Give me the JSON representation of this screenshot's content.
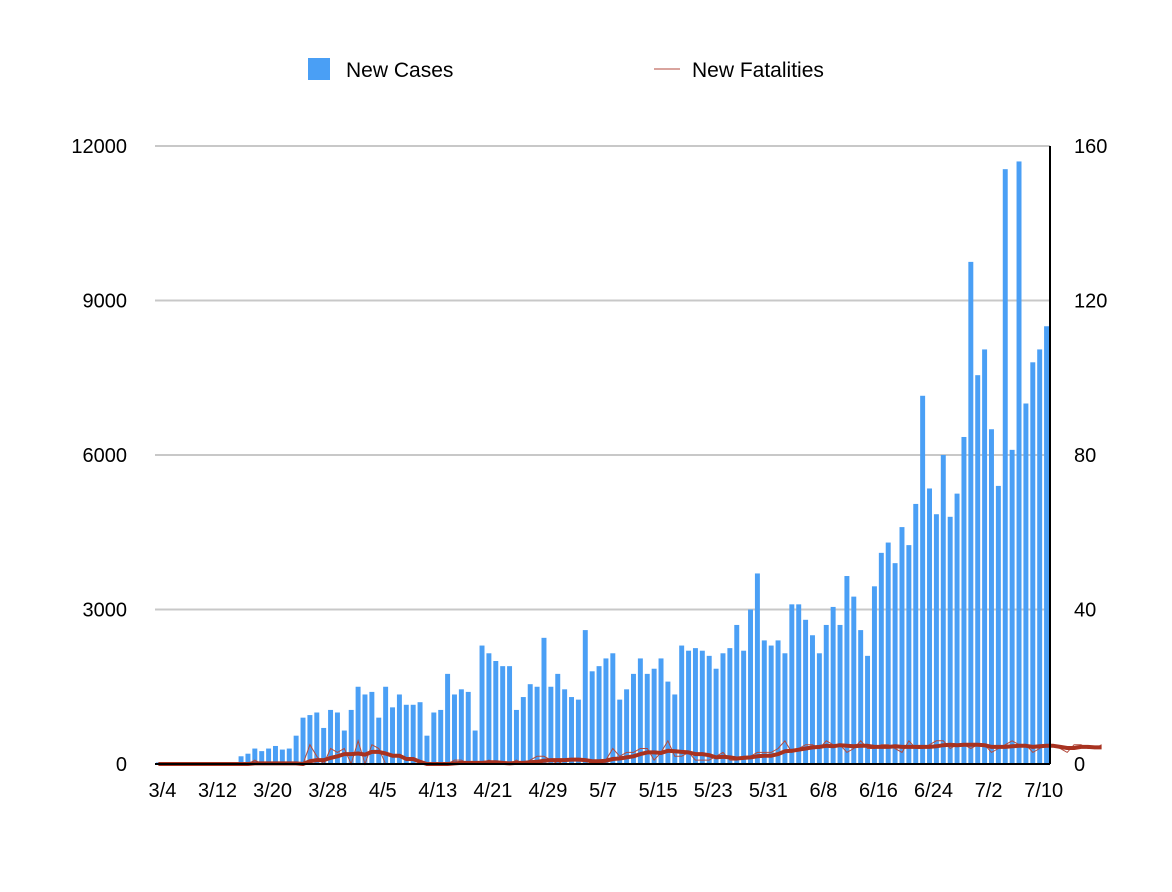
{
  "chart_data": {
    "type": "bar",
    "title": "",
    "xlabel": "",
    "ylabel": "",
    "ylim": [
      0,
      12000
    ],
    "y2lim": [
      0,
      160
    ],
    "y_ticks": [
      "0",
      "3000",
      "6000",
      "9000",
      "12000"
    ],
    "y2_ticks": [
      "0",
      "40",
      "80",
      "120",
      "160"
    ],
    "x_tick_labels": [
      "3/4",
      "3/12",
      "3/20",
      "3/28",
      "4/5",
      "4/13",
      "4/21",
      "4/29",
      "5/7",
      "5/15",
      "5/23",
      "5/31",
      "6/8",
      "6/16",
      "6/24",
      "7/2",
      "7/10"
    ],
    "grid": true,
    "legend_placement": "top",
    "legend": {
      "cases_label": "New Cases",
      "fatalities_label": "New Fatalities"
    },
    "colors": {
      "bars": "#4a9ff5",
      "fatalities": "#b34a3c",
      "average": "#a83220",
      "grid": "#c8c8c8"
    },
    "series": [
      {
        "name": "New Cases",
        "axis": "left",
        "style": "bar",
        "values": [
          30,
          0,
          0,
          0,
          0,
          0,
          0,
          0,
          20,
          0,
          0,
          20,
          150,
          200,
          300,
          250,
          300,
          350,
          280,
          300,
          550,
          900,
          950,
          1000,
          700,
          1050,
          1000,
          650,
          1050,
          1500,
          1350,
          1400,
          900,
          1500,
          1100,
          1350,
          1150,
          1150,
          1200,
          550,
          1000,
          1050,
          1750,
          1350,
          1450,
          1400,
          650,
          2300,
          2150,
          2000,
          1900,
          1900,
          1050,
          1300,
          1550,
          1500,
          2450,
          1500,
          1750,
          1450,
          1300,
          1250,
          2600,
          1800,
          1900,
          2050,
          2150,
          1250,
          1450,
          1750,
          2050,
          1750,
          1850,
          2050,
          1600,
          1350,
          2300,
          2200,
          2250,
          2200,
          2100,
          1850,
          2150,
          2250,
          2700,
          2200,
          3000,
          3700,
          2400,
          2300,
          2400,
          2150,
          3100,
          3100,
          2800,
          2500,
          2150,
          2700,
          3050,
          2700,
          3650,
          3250,
          2600,
          2100,
          3450,
          4100,
          4300,
          3900,
          4600,
          4250,
          5050,
          7150,
          5350,
          4850,
          6000,
          4800,
          5250,
          6350,
          9750,
          7550,
          8050,
          6500,
          5400,
          11550,
          6100,
          11700,
          7000,
          7800,
          8050,
          8500
        ]
      },
      {
        "name": "New Fatalities",
        "axis": "right",
        "style": "thin-line",
        "values": [
          0,
          0,
          0,
          0,
          0,
          0,
          0,
          0,
          0,
          0,
          0,
          0,
          0,
          0,
          1,
          0,
          0,
          0,
          0,
          0,
          0,
          0,
          5,
          2,
          0,
          4,
          3,
          4,
          0,
          6,
          0,
          5,
          4,
          0,
          0,
          0,
          0,
          0,
          0,
          0,
          0,
          0,
          0,
          1,
          1,
          0,
          0,
          0,
          1,
          0,
          0,
          0,
          1,
          0,
          1,
          2,
          2,
          1,
          0,
          1,
          1,
          1,
          1,
          0,
          1,
          1,
          4,
          2,
          3,
          3,
          4,
          4,
          1,
          3,
          6,
          2,
          2,
          3,
          1,
          1,
          1,
          2,
          3,
          1,
          1,
          2,
          2,
          3,
          3,
          3,
          4,
          6,
          3,
          4,
          5,
          5,
          4,
          6,
          5,
          5,
          3,
          4,
          6,
          4,
          4,
          5,
          5,
          4,
          3,
          6,
          4,
          4,
          5,
          6,
          6,
          4,
          5,
          5,
          4,
          5,
          5,
          3,
          4,
          5,
          6,
          5,
          5,
          3,
          4,
          5,
          5,
          4,
          3,
          5,
          5,
          4,
          4,
          5
        ]
      },
      {
        "name": "",
        "axis": "right",
        "style": "thick-line",
        "values": [
          0
        ]
      }
    ]
  }
}
